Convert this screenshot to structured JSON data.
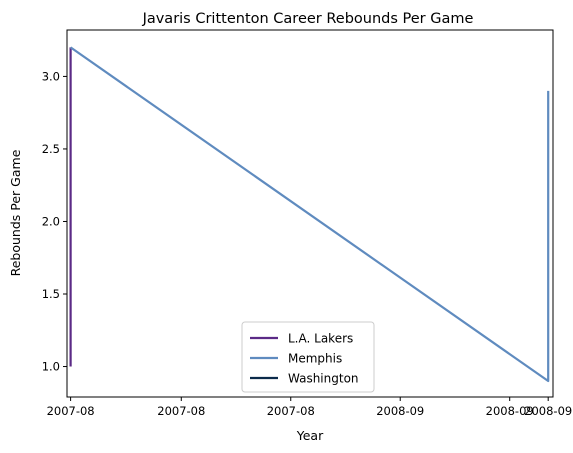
{
  "chart_data": {
    "type": "line",
    "title": "Javaris Crittenton Career Rebounds Per Game",
    "xlabel": "Year",
    "ylabel": "Rebounds Per Game",
    "x_axis_type": "date",
    "xlim": [
      "2007-07-29",
      "2008-09-05"
    ],
    "ylim": [
      0.79,
      3.32
    ],
    "x_ticks": [
      {
        "value": "2007-08-01",
        "label": "2007-08"
      },
      {
        "value": "2007-11-01",
        "label": "2007-08"
      },
      {
        "value": "2008-01-31",
        "label": "2007-08"
      },
      {
        "value": "2008-05-01",
        "label": "2008-09"
      },
      {
        "value": "2008-07-31",
        "label": "2008-09"
      },
      {
        "value": "2008-09-01",
        "label": "2008-09"
      }
    ],
    "y_ticks": [
      1.0,
      1.5,
      2.0,
      2.5,
      3.0
    ],
    "y_tick_labels": [
      "1.0",
      "1.5",
      "2.0",
      "2.5",
      "3.0"
    ],
    "grid": false,
    "legend_position": "bottom-center",
    "series": [
      {
        "name": "L.A. Lakers",
        "color": "#5b2a86",
        "x": [
          "2007-08-01",
          "2007-08-01"
        ],
        "y": [
          1.0,
          3.2
        ]
      },
      {
        "name": "Memphis",
        "color": "#5f8bbf",
        "x": [
          "2007-08-01",
          "2008-09-01",
          "2008-09-01"
        ],
        "y": [
          3.2,
          0.9,
          2.9
        ]
      },
      {
        "name": "Washington",
        "color": "#0b2a4a",
        "x": [],
        "y": []
      }
    ]
  }
}
